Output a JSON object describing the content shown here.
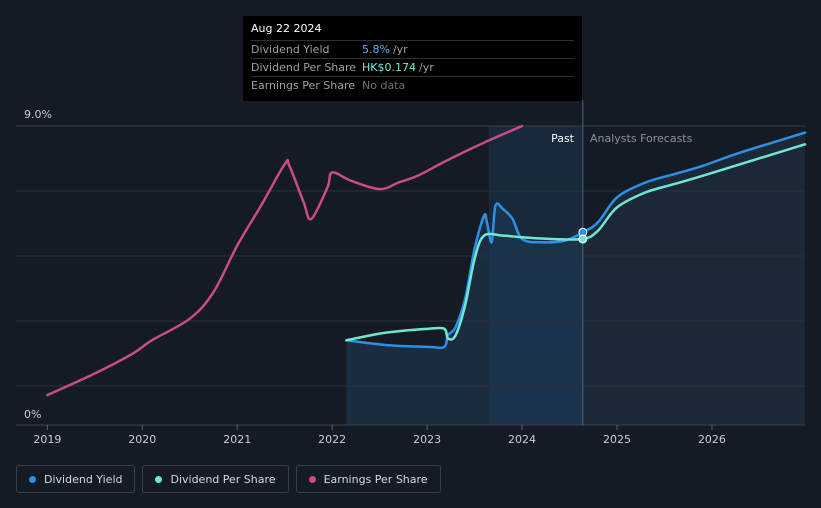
{
  "tooltip": {
    "date": "Aug 22 2024",
    "rows": [
      {
        "label": "Dividend Yield",
        "value": "5.8%",
        "unit": "/yr"
      },
      {
        "label": "Dividend Per Share",
        "value": "HK$0.174",
        "unit": "/yr"
      },
      {
        "label": "Earnings Per Share",
        "value": "No data"
      }
    ]
  },
  "labels": {
    "past": "Past",
    "forecast": "Analysts Forecasts"
  },
  "legend": [
    {
      "label": "Dividend Yield",
      "color": "#2d8fe6"
    },
    {
      "label": "Dividend Per Share",
      "color": "#6fe8d3"
    },
    {
      "label": "Earnings Per Share",
      "color": "#c94b8a"
    }
  ],
  "chart_data": {
    "type": "line",
    "xlim": [
      2018.67,
      2026.98
    ],
    "ylim": [
      0,
      9.0
    ],
    "y_tick_labels": [
      {
        "value": 9.0,
        "label": "9.0%"
      },
      {
        "value": 0,
        "label": "0%"
      }
    ],
    "x_ticks": [
      2019,
      2020,
      2021,
      2022,
      2023,
      2024,
      2025,
      2026
    ],
    "past_forecast_divider": 2024.64,
    "highlight_band": [
      2023.65,
      2024.64
    ],
    "series": [
      {
        "name": "Earnings Per Share",
        "color": "#c94b8a",
        "points": [
          [
            2019.0,
            0.9
          ],
          [
            2019.5,
            1.55
          ],
          [
            2019.9,
            2.15
          ],
          [
            2020.1,
            2.55
          ],
          [
            2020.5,
            3.2
          ],
          [
            2020.75,
            4.0
          ],
          [
            2021.0,
            5.4
          ],
          [
            2021.25,
            6.6
          ],
          [
            2021.5,
            7.85
          ],
          [
            2021.55,
            7.8
          ],
          [
            2021.7,
            6.7
          ],
          [
            2021.78,
            6.2
          ],
          [
            2021.95,
            7.15
          ],
          [
            2022.0,
            7.6
          ],
          [
            2022.2,
            7.35
          ],
          [
            2022.5,
            7.1
          ],
          [
            2022.7,
            7.3
          ],
          [
            2022.9,
            7.5
          ],
          [
            2023.2,
            7.95
          ],
          [
            2023.6,
            8.5
          ],
          [
            2024.0,
            9.0
          ]
        ]
      },
      {
        "name": "Dividend Yield",
        "color": "#2d8fe6",
        "points": [
          [
            2022.15,
            2.55
          ],
          [
            2022.6,
            2.4
          ],
          [
            2023.02,
            2.35
          ],
          [
            2023.18,
            2.35
          ],
          [
            2023.22,
            2.7
          ],
          [
            2023.3,
            2.95
          ],
          [
            2023.4,
            3.8
          ],
          [
            2023.5,
            5.3
          ],
          [
            2023.6,
            6.3
          ],
          [
            2023.63,
            6.1
          ],
          [
            2023.68,
            5.5
          ],
          [
            2023.72,
            6.6
          ],
          [
            2023.8,
            6.5
          ],
          [
            2023.9,
            6.2
          ],
          [
            2024.0,
            5.6
          ],
          [
            2024.2,
            5.5
          ],
          [
            2024.45,
            5.55
          ],
          [
            2024.64,
            5.8
          ],
          [
            2024.8,
            6.1
          ],
          [
            2025.0,
            6.85
          ],
          [
            2025.3,
            7.3
          ],
          [
            2025.6,
            7.55
          ],
          [
            2025.9,
            7.8
          ],
          [
            2026.3,
            8.2
          ],
          [
            2026.98,
            8.8
          ]
        ]
      },
      {
        "name": "Dividend Per Share",
        "color": "#6fe8d3",
        "points": [
          [
            2022.15,
            2.55
          ],
          [
            2022.5,
            2.75
          ],
          [
            2022.8,
            2.85
          ],
          [
            2023.02,
            2.9
          ],
          [
            2023.18,
            2.9
          ],
          [
            2023.22,
            2.6
          ],
          [
            2023.3,
            2.7
          ],
          [
            2023.4,
            3.6
          ],
          [
            2023.5,
            5.0
          ],
          [
            2023.6,
            5.7
          ],
          [
            2023.8,
            5.7
          ],
          [
            2024.0,
            5.65
          ],
          [
            2024.3,
            5.6
          ],
          [
            2024.64,
            5.6
          ],
          [
            2024.8,
            5.85
          ],
          [
            2025.0,
            6.55
          ],
          [
            2025.3,
            7.0
          ],
          [
            2025.6,
            7.25
          ],
          [
            2025.9,
            7.5
          ],
          [
            2026.3,
            7.85
          ],
          [
            2026.98,
            8.45
          ]
        ]
      }
    ]
  }
}
